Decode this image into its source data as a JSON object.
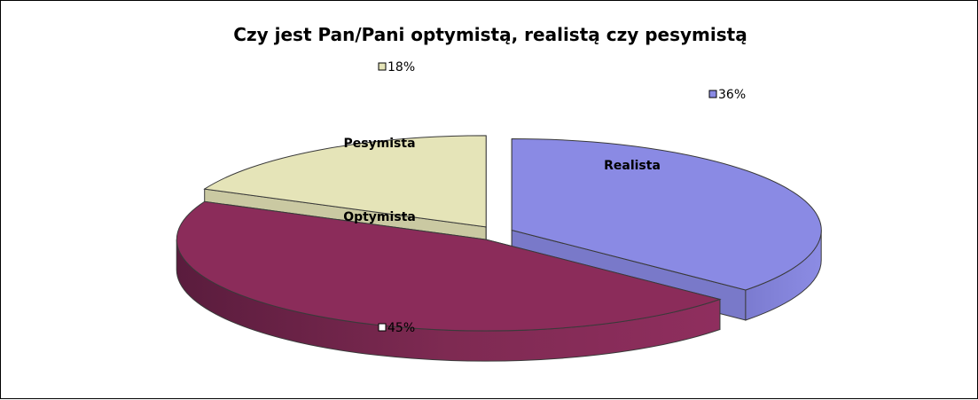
{
  "chart_data": {
    "type": "pie",
    "style": "3d-exploded",
    "title": "Czy jest Pan/Pani optymistą, realistą czy pesymistą",
    "categories": [
      "Realista",
      "Optymista",
      "Pesymista"
    ],
    "values": [
      36,
      45,
      18
    ],
    "value_labels": [
      "36%",
      "45%",
      "18%"
    ],
    "colors": [
      "#8a8ae4",
      "#8b2c5a",
      "#e5e4b8"
    ],
    "legend": false
  }
}
